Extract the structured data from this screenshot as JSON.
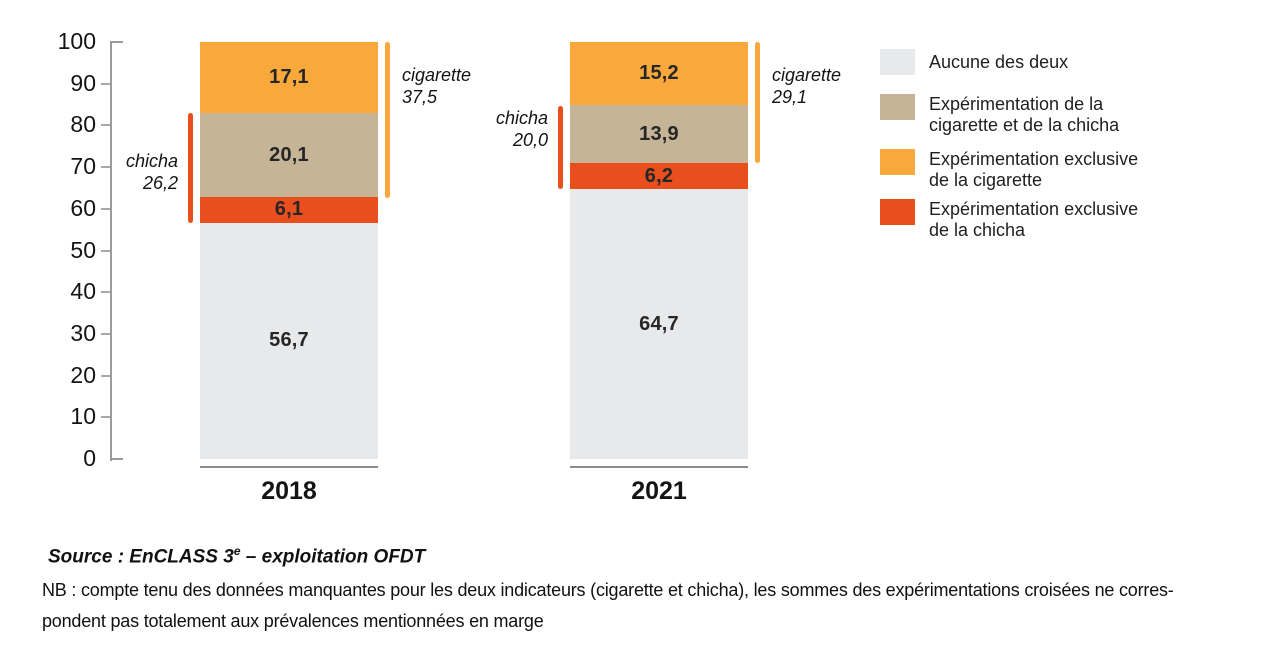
{
  "chart_data": {
    "type": "bar",
    "stacked": true,
    "categories": [
      "2018",
      "2021"
    ],
    "series": [
      {
        "name": "Aucune des deux",
        "color": "#e8e9eb",
        "values": [
          56.7,
          64.7
        ]
      },
      {
        "name": "Expérimentation exclusive de la chicha",
        "color": "#e84f1d",
        "values": [
          6.1,
          6.2
        ]
      },
      {
        "name": "Expérimentation de la cigarette et de la chicha",
        "color": "#c5b496",
        "values": [
          20.1,
          13.9
        ]
      },
      {
        "name": "Expérimentation exclusive de la cigarette",
        "color": "#f9a93c",
        "values": [
          17.1,
          15.2
        ]
      }
    ],
    "value_labels": [
      [
        "56,7",
        "6,1",
        "20,1",
        "17,1"
      ],
      [
        "64,7",
        "6,2",
        "13,9",
        "15,2"
      ]
    ],
    "annotations": [
      {
        "bar": "2018",
        "side": "left",
        "label": "chicha",
        "value": "26,2",
        "from": 56.7,
        "to": 82.9,
        "color": "#e84f1d"
      },
      {
        "bar": "2018",
        "side": "right",
        "label": "cigarette",
        "value": "37,5",
        "from": 62.5,
        "to": 100,
        "color": "#f9a93c"
      },
      {
        "bar": "2021",
        "side": "left",
        "label": "chicha",
        "value": "20,0",
        "from": 64.7,
        "to": 84.7,
        "color": "#e84f1d"
      },
      {
        "bar": "2021",
        "side": "right",
        "label": "cigarette",
        "value": "29,1",
        "from": 70.9,
        "to": 100,
        "color": "#f9a93c"
      }
    ],
    "ylim": [
      0,
      100
    ],
    "yticks": [
      0,
      10,
      20,
      30,
      40,
      50,
      60,
      70,
      80,
      90,
      100
    ],
    "grid": false,
    "legend_position": "right"
  },
  "legend": {
    "items": [
      {
        "color": "#e8e9eb",
        "lines": [
          "Aucune des deux",
          ""
        ]
      },
      {
        "color": "#c5b496",
        "lines": [
          "Expérimentation de la",
          "cigarette et de la chicha"
        ]
      },
      {
        "color": "#f9a93c",
        "lines": [
          "Expérimentation exclusive",
          "de la cigarette"
        ]
      },
      {
        "color": "#e84f1d",
        "lines": [
          "Expérimentation exclusive",
          "de la chicha"
        ]
      }
    ]
  },
  "footer": {
    "source_prefix": "Source : EnCLASS 3",
    "source_sup": "e",
    "source_suffix": " – exploitation OFDT",
    "nb_line1": "NB : compte tenu des données manquantes pour les deux indicateurs (cigarette et chicha), les sommes des expérimentations croisées ne corres-",
    "nb_line2": "pondent pas totalement aux prévalences mentionnées en marge"
  }
}
